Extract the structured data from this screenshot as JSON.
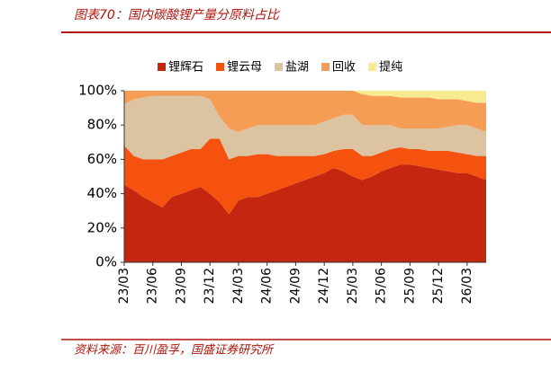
{
  "title": "图表70：国内碳酸锂产量分原料占比",
  "source": "资料来源：百川盈孚，国盛证券研究所",
  "chart_data": {
    "type": "stacked_area",
    "categories": [
      "23/03",
      null,
      null,
      "23/06",
      null,
      null,
      "23/09",
      null,
      null,
      "23/12",
      null,
      null,
      "24/03",
      null,
      null,
      "24/06",
      null,
      null,
      "24/09",
      null,
      null,
      "24/12",
      null,
      null,
      "25/03",
      null,
      null,
      "25/06",
      null,
      null,
      "25/09",
      null,
      null,
      "25/12",
      null,
      null,
      "26/03",
      null,
      null
    ],
    "series": [
      {
        "name": "锂辉石",
        "color": "#c4260f",
        "values": [
          45,
          42,
          38,
          35,
          32,
          38,
          40,
          42,
          44,
          40,
          35,
          28,
          36,
          38,
          38,
          40,
          42,
          44,
          46,
          48,
          50,
          52,
          55,
          53,
          50,
          48,
          50,
          53,
          55,
          57,
          57,
          56,
          55,
          54,
          53,
          52,
          52,
          50,
          48
        ]
      },
      {
        "name": "锂云母",
        "color": "#f5520f",
        "values": [
          23,
          20,
          22,
          25,
          28,
          24,
          24,
          24,
          22,
          32,
          37,
          32,
          26,
          24,
          25,
          23,
          20,
          18,
          16,
          14,
          12,
          11,
          10,
          13,
          16,
          14,
          12,
          11,
          11,
          10,
          9,
          10,
          10,
          11,
          12,
          12,
          11,
          12,
          14
        ]
      },
      {
        "name": "盐湖",
        "color": "#dcc4a2",
        "values": [
          24,
          33,
          36,
          37,
          37,
          35,
          33,
          31,
          31,
          23,
          13,
          18,
          14,
          16,
          17,
          17,
          18,
          18,
          18,
          18,
          18,
          19,
          19,
          20,
          20,
          18,
          18,
          16,
          14,
          11,
          12,
          12,
          13,
          13,
          14,
          16,
          17,
          16,
          14
        ]
      },
      {
        "name": "回收",
        "color": "#f59d55",
        "values": [
          8,
          5,
          4,
          3,
          3,
          3,
          3,
          3,
          3,
          5,
          15,
          22,
          24,
          22,
          20,
          20,
          20,
          20,
          20,
          20,
          20,
          18,
          16,
          14,
          14,
          18,
          17,
          17,
          17,
          18,
          18,
          18,
          18,
          17,
          16,
          15,
          14,
          15,
          17
        ]
      },
      {
        "name": "提纯",
        "color": "#f7eb92",
        "values": [
          0,
          0,
          0,
          0,
          0,
          0,
          0,
          0,
          0,
          0,
          0,
          0,
          0,
          0,
          0,
          0,
          0,
          0,
          0,
          0,
          0,
          0,
          0,
          0,
          0,
          2,
          3,
          3,
          3,
          4,
          4,
          4,
          4,
          5,
          5,
          5,
          6,
          7,
          7
        ]
      }
    ],
    "ylim": [
      0,
      100
    ],
    "yticks": [
      {
        "value": 0,
        "label": "0%"
      },
      {
        "value": 20,
        "label": "20%"
      },
      {
        "value": 40,
        "label": "40%"
      },
      {
        "value": 60,
        "label": "60%"
      },
      {
        "value": 80,
        "label": "80%"
      },
      {
        "value": 100,
        "label": "100%"
      }
    ]
  }
}
